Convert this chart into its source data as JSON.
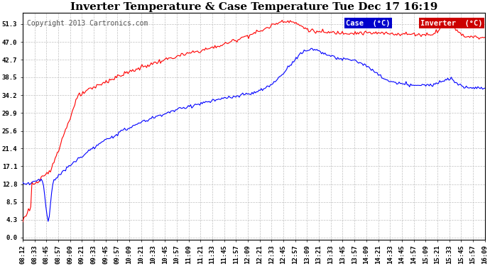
{
  "title": "Inverter Temperature & Case Temperature Tue Dec 17 16:19",
  "copyright": "Copyright 2013 Cartronics.com",
  "bg_color": "#ffffff",
  "plot_bg_color": "#ffffff",
  "grid_color": "#c0c0c0",
  "yticks": [
    0.0,
    4.3,
    8.5,
    12.8,
    17.1,
    21.4,
    25.6,
    29.9,
    34.2,
    38.5,
    42.7,
    47.0,
    51.3
  ],
  "ylim": [
    -0.5,
    54.0
  ],
  "x_labels": [
    "08:12",
    "08:33",
    "08:45",
    "08:57",
    "09:09",
    "09:21",
    "09:33",
    "09:45",
    "09:57",
    "10:09",
    "10:21",
    "10:33",
    "10:45",
    "10:57",
    "11:09",
    "11:21",
    "11:33",
    "11:45",
    "11:57",
    "12:09",
    "12:21",
    "12:33",
    "12:45",
    "12:57",
    "13:09",
    "13:21",
    "13:33",
    "13:45",
    "13:57",
    "14:09",
    "14:21",
    "14:33",
    "14:45",
    "14:57",
    "15:09",
    "15:21",
    "15:33",
    "15:45",
    "15:57",
    "16:09"
  ],
  "case_color": "#ff0000",
  "inverter_color": "#0000ff",
  "case_legend_bg": "#0000cc",
  "inverter_legend_bg": "#cc0000",
  "title_fontsize": 11,
  "axis_fontsize": 6.5,
  "copyright_fontsize": 7,
  "legend_fontsize": 7.5
}
